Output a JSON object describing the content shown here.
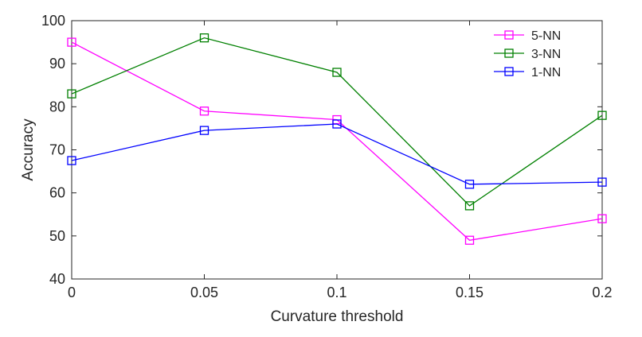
{
  "chart_data": {
    "type": "line",
    "title": "",
    "xlabel": "Curvature threshold",
    "ylabel": "Accuracy",
    "x": [
      0,
      0.05,
      0.1,
      0.15,
      0.2
    ],
    "x_tick_labels": [
      "0",
      "0.05",
      "0.1",
      "0.15",
      "0.2"
    ],
    "y_ticks": [
      40,
      50,
      60,
      70,
      80,
      90,
      100
    ],
    "y_tick_labels": [
      "40",
      "50",
      "60",
      "70",
      "80",
      "90",
      "100"
    ],
    "xlim": [
      0,
      0.2
    ],
    "ylim": [
      40,
      100
    ],
    "grid": false,
    "legend_position": "top-right",
    "marker": "square",
    "series": [
      {
        "name": "5-NN",
        "color": "#ff00ff",
        "values": [
          95,
          79,
          77,
          49,
          54
        ]
      },
      {
        "name": "3-NN",
        "color": "#008000",
        "values": [
          83,
          96,
          88,
          57,
          78
        ]
      },
      {
        "name": "1-NN",
        "color": "#0000ff",
        "values": [
          67.5,
          74.5,
          76,
          62,
          62.5
        ]
      }
    ]
  }
}
